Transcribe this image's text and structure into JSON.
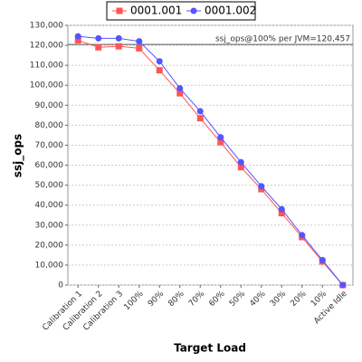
{
  "chart_data": {
    "type": "line",
    "x_label": "Target Load",
    "y_label": "ssj_ops",
    "categories": [
      "Calibration 1",
      "Calibration 2",
      "Calibration 3",
      "100%",
      "90%",
      "80%",
      "70%",
      "60%",
      "50%",
      "40%",
      "30%",
      "20%",
      "10%",
      "Active Idle"
    ],
    "series": [
      {
        "name": "0001.001",
        "color": "#ff5555",
        "marker": "square",
        "values": [
          122500,
          119000,
          119500,
          118500,
          107500,
          96000,
          83500,
          71500,
          59000,
          48000,
          36000,
          24000,
          11800,
          0
        ]
      },
      {
        "name": "0001.002",
        "color": "#5555ff",
        "marker": "circle",
        "values": [
          124500,
          123500,
          123500,
          122000,
          112000,
          98500,
          87000,
          74000,
          61500,
          49500,
          38000,
          25000,
          12500,
          0
        ]
      }
    ],
    "reference_line": {
      "value": 120457,
      "label": "ssj_ops@100% per JVM=120,457"
    },
    "ylim": [
      0,
      130000
    ],
    "yticks": [
      0,
      {
        "value": 10000,
        "label": "10,000"
      },
      {
        "value": 20000,
        "label": "20,000"
      },
      {
        "value": 30000,
        "label": "30,000"
      },
      {
        "value": 40000,
        "label": "40,000"
      },
      {
        "value": 50000,
        "label": "50,000"
      },
      {
        "value": 60000,
        "label": "60,000"
      },
      {
        "value": 70000,
        "label": "70,000"
      },
      {
        "value": 80000,
        "label": "80,000"
      },
      {
        "value": 90000,
        "label": "90,000"
      },
      {
        "value": 100000,
        "label": "100,000"
      },
      {
        "value": 110000,
        "label": "110,000"
      },
      {
        "value": 120000,
        "label": "120,000"
      },
      {
        "value": 130000,
        "label": "130,000"
      }
    ],
    "grid": true,
    "legend": "top"
  }
}
